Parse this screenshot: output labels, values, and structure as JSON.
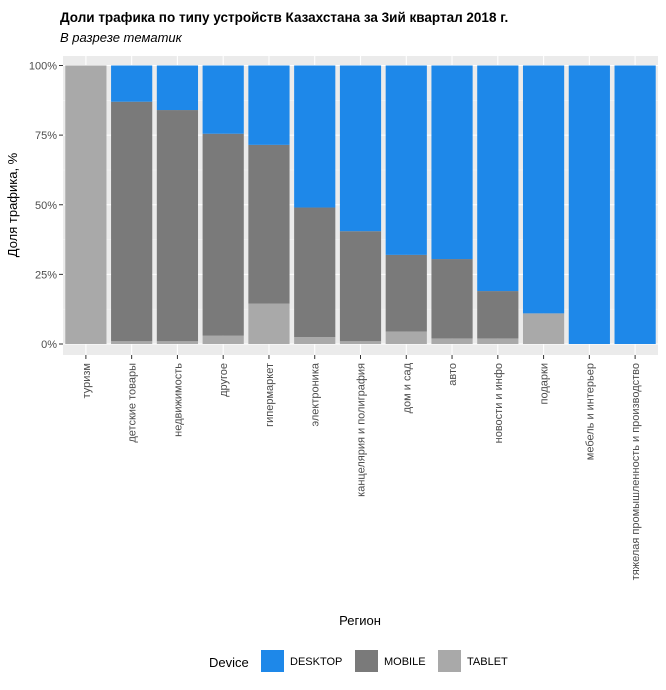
{
  "chart_data": {
    "type": "bar",
    "stacked": true,
    "title": "Доли трафика по типу устройств Казахстана за 3ий квартал 2018 г.",
    "subtitle": "В разрезе тематик",
    "xlabel": "Регион",
    "ylabel": "Доля трафика, %",
    "ylim": [
      0,
      100
    ],
    "yticks": [
      "0%",
      "25%",
      "50%",
      "75%",
      "100%"
    ],
    "ytick_values": [
      0,
      25,
      50,
      75,
      100
    ],
    "grid": true,
    "legend": {
      "title": "Device",
      "position": "bottom"
    },
    "categories": [
      "туризм",
      "детские товары",
      "недвижимость",
      "другое",
      "гипермаркет",
      "электроника",
      "канцелярия и полиграфия",
      "дом и сад",
      "авто",
      "новости и инфо",
      "подарки",
      "мебель и интерьер",
      "тяжелая промышленность и производство"
    ],
    "series": [
      {
        "name": "TABLET",
        "color": "#A9A9A9",
        "values": [
          100,
          1,
          1,
          3,
          14.5,
          2.5,
          1,
          4.5,
          2,
          2,
          11,
          0,
          0
        ]
      },
      {
        "name": "MOBILE",
        "color": "#7A7A7A",
        "values": [
          0,
          86,
          83,
          72.5,
          57,
          46.5,
          39.5,
          27.5,
          28.5,
          17,
          0,
          0,
          0
        ]
      },
      {
        "name": "DESKTOP",
        "color": "#1E88E9",
        "values": [
          0,
          13,
          16,
          24.5,
          28.5,
          51,
          59.5,
          68,
          69.5,
          81,
          89,
          100,
          100
        ]
      }
    ],
    "legend_order": [
      "DESKTOP",
      "MOBILE",
      "TABLET"
    ]
  }
}
